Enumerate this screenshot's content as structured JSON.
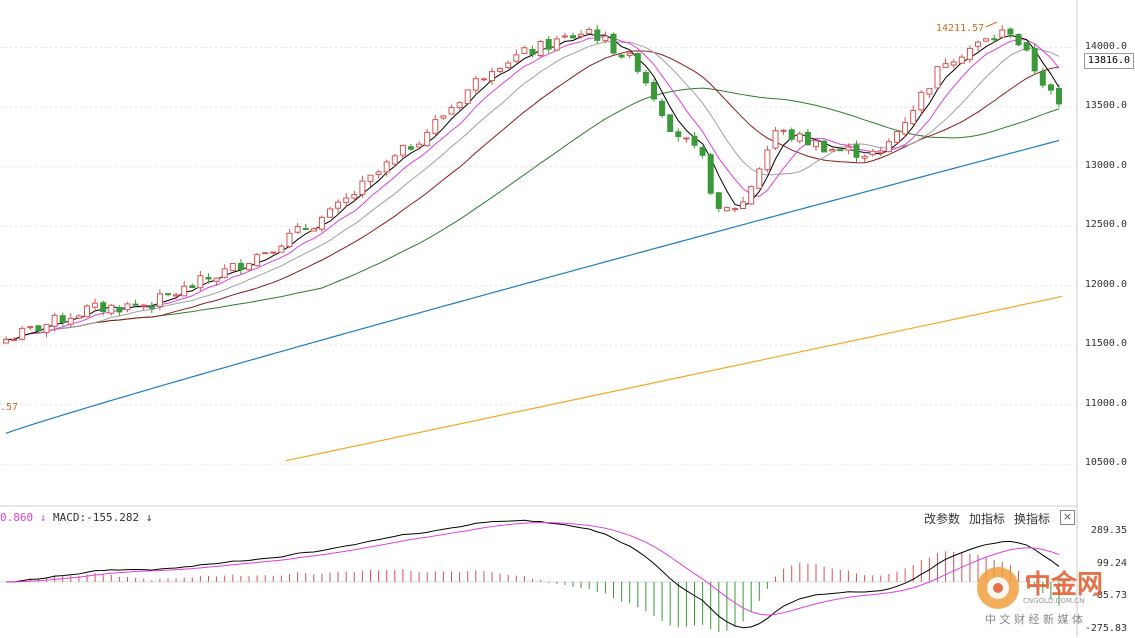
{
  "colors": {
    "up": "#d9534f",
    "down": "#3a9a3a",
    "ma5": "#000000",
    "ma10": "#e040e0",
    "ma20": "#a0a0a0",
    "ma30": "#8b1a1a",
    "ma60": "#2f7d2f",
    "ma120": "#1e7bc0",
    "ma250": "#f5a623",
    "dif": "#000000",
    "dea": "#e040e0",
    "grid": "#e3e3e3",
    "annotation": "#d2691e"
  },
  "chart_data": [
    {
      "type": "candlestick",
      "y_axis_ticks": [
        "14000.0",
        "13500.0",
        "13000.0",
        "12500.0",
        "12000.0",
        "11500.0",
        "11000.0",
        "10500.0"
      ],
      "ylim": [
        10200,
        14400
      ],
      "current_price_label": "13816.0",
      "high_annotation": "14211.57",
      "low_annotation": ".57",
      "moving_averages": [
        "MA5",
        "MA10",
        "MA20",
        "MA30",
        "MA60",
        "MA120",
        "MA250"
      ],
      "series_ma250": {
        "start": 10530,
        "end": 11910
      },
      "series_ma120": {
        "start": 10760,
        "end": 13220
      }
    },
    {
      "type": "macd",
      "dif_label": "0.860",
      "macd_label": "MACD:-155.282",
      "y_axis_ticks": [
        "289.35",
        "99.24",
        "-85.73",
        "-275.83"
      ],
      "ylim": [
        -290,
        300
      ]
    }
  ],
  "toolbar": {
    "change_params": "改参数",
    "add_indicator": "加指标",
    "switch_indicator": "换指标",
    "close": "×"
  },
  "watermark": {
    "brand": "中金网",
    "subtitle": "中 文 财 经 新 媒 体",
    "domain": "CNGOLD.COM.CN"
  }
}
